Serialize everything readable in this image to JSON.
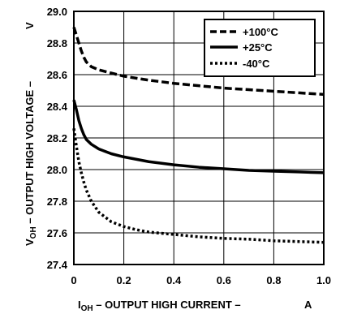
{
  "chart_data": {
    "type": "line",
    "xlabel": {
      "main": "I",
      "sub": "OH",
      "rest": " – OUTPUT HIGH CURRENT –",
      "unit": "A"
    },
    "ylabel": {
      "main": "V",
      "sub": "OH",
      "rest": " – OUTPUT HIGH VOLTAGE –",
      "unit": "V"
    },
    "xlim": [
      0,
      1.0
    ],
    "ylim": [
      27.4,
      29.0
    ],
    "x_ticks": [
      "0",
      "0.2",
      "0.4",
      "0.6",
      "0.8",
      "1.0"
    ],
    "y_ticks": [
      "27.4",
      "27.6",
      "27.8",
      "28.0",
      "28.2",
      "28.4",
      "28.6",
      "28.8",
      "29.0"
    ],
    "grid": true,
    "legend_position": "top-right",
    "series": [
      {
        "name": "+100°C",
        "style": "dashed",
        "x": [
          0,
          0.01,
          0.02,
          0.03,
          0.04,
          0.05,
          0.07,
          0.1,
          0.15,
          0.2,
          0.3,
          0.4,
          0.5,
          0.6,
          0.7,
          0.8,
          0.9,
          1.0
        ],
        "y": [
          28.9,
          28.85,
          28.8,
          28.75,
          28.71,
          28.68,
          28.65,
          28.63,
          28.61,
          28.59,
          28.565,
          28.545,
          28.53,
          28.515,
          28.505,
          28.495,
          28.485,
          28.475
        ]
      },
      {
        "name": "+25°C",
        "style": "solid",
        "x": [
          0,
          0.01,
          0.02,
          0.03,
          0.04,
          0.05,
          0.07,
          0.1,
          0.15,
          0.2,
          0.3,
          0.4,
          0.5,
          0.6,
          0.7,
          0.8,
          0.9,
          1.0
        ],
        "y": [
          28.44,
          28.38,
          28.31,
          28.26,
          28.22,
          28.19,
          28.16,
          28.13,
          28.1,
          28.08,
          28.05,
          28.03,
          28.015,
          28.005,
          27.995,
          27.99,
          27.985,
          27.98
        ]
      },
      {
        "name": "-40°C",
        "style": "dotted",
        "x": [
          0,
          0.01,
          0.02,
          0.03,
          0.04,
          0.05,
          0.07,
          0.1,
          0.15,
          0.2,
          0.25,
          0.3,
          0.4,
          0.5,
          0.6,
          0.7,
          0.8,
          0.9,
          1.0
        ],
        "y": [
          28.26,
          28.15,
          28.05,
          27.98,
          27.92,
          27.87,
          27.8,
          27.73,
          27.67,
          27.64,
          27.62,
          27.605,
          27.59,
          27.575,
          27.565,
          27.56,
          27.55,
          27.545,
          27.54
        ]
      }
    ]
  }
}
